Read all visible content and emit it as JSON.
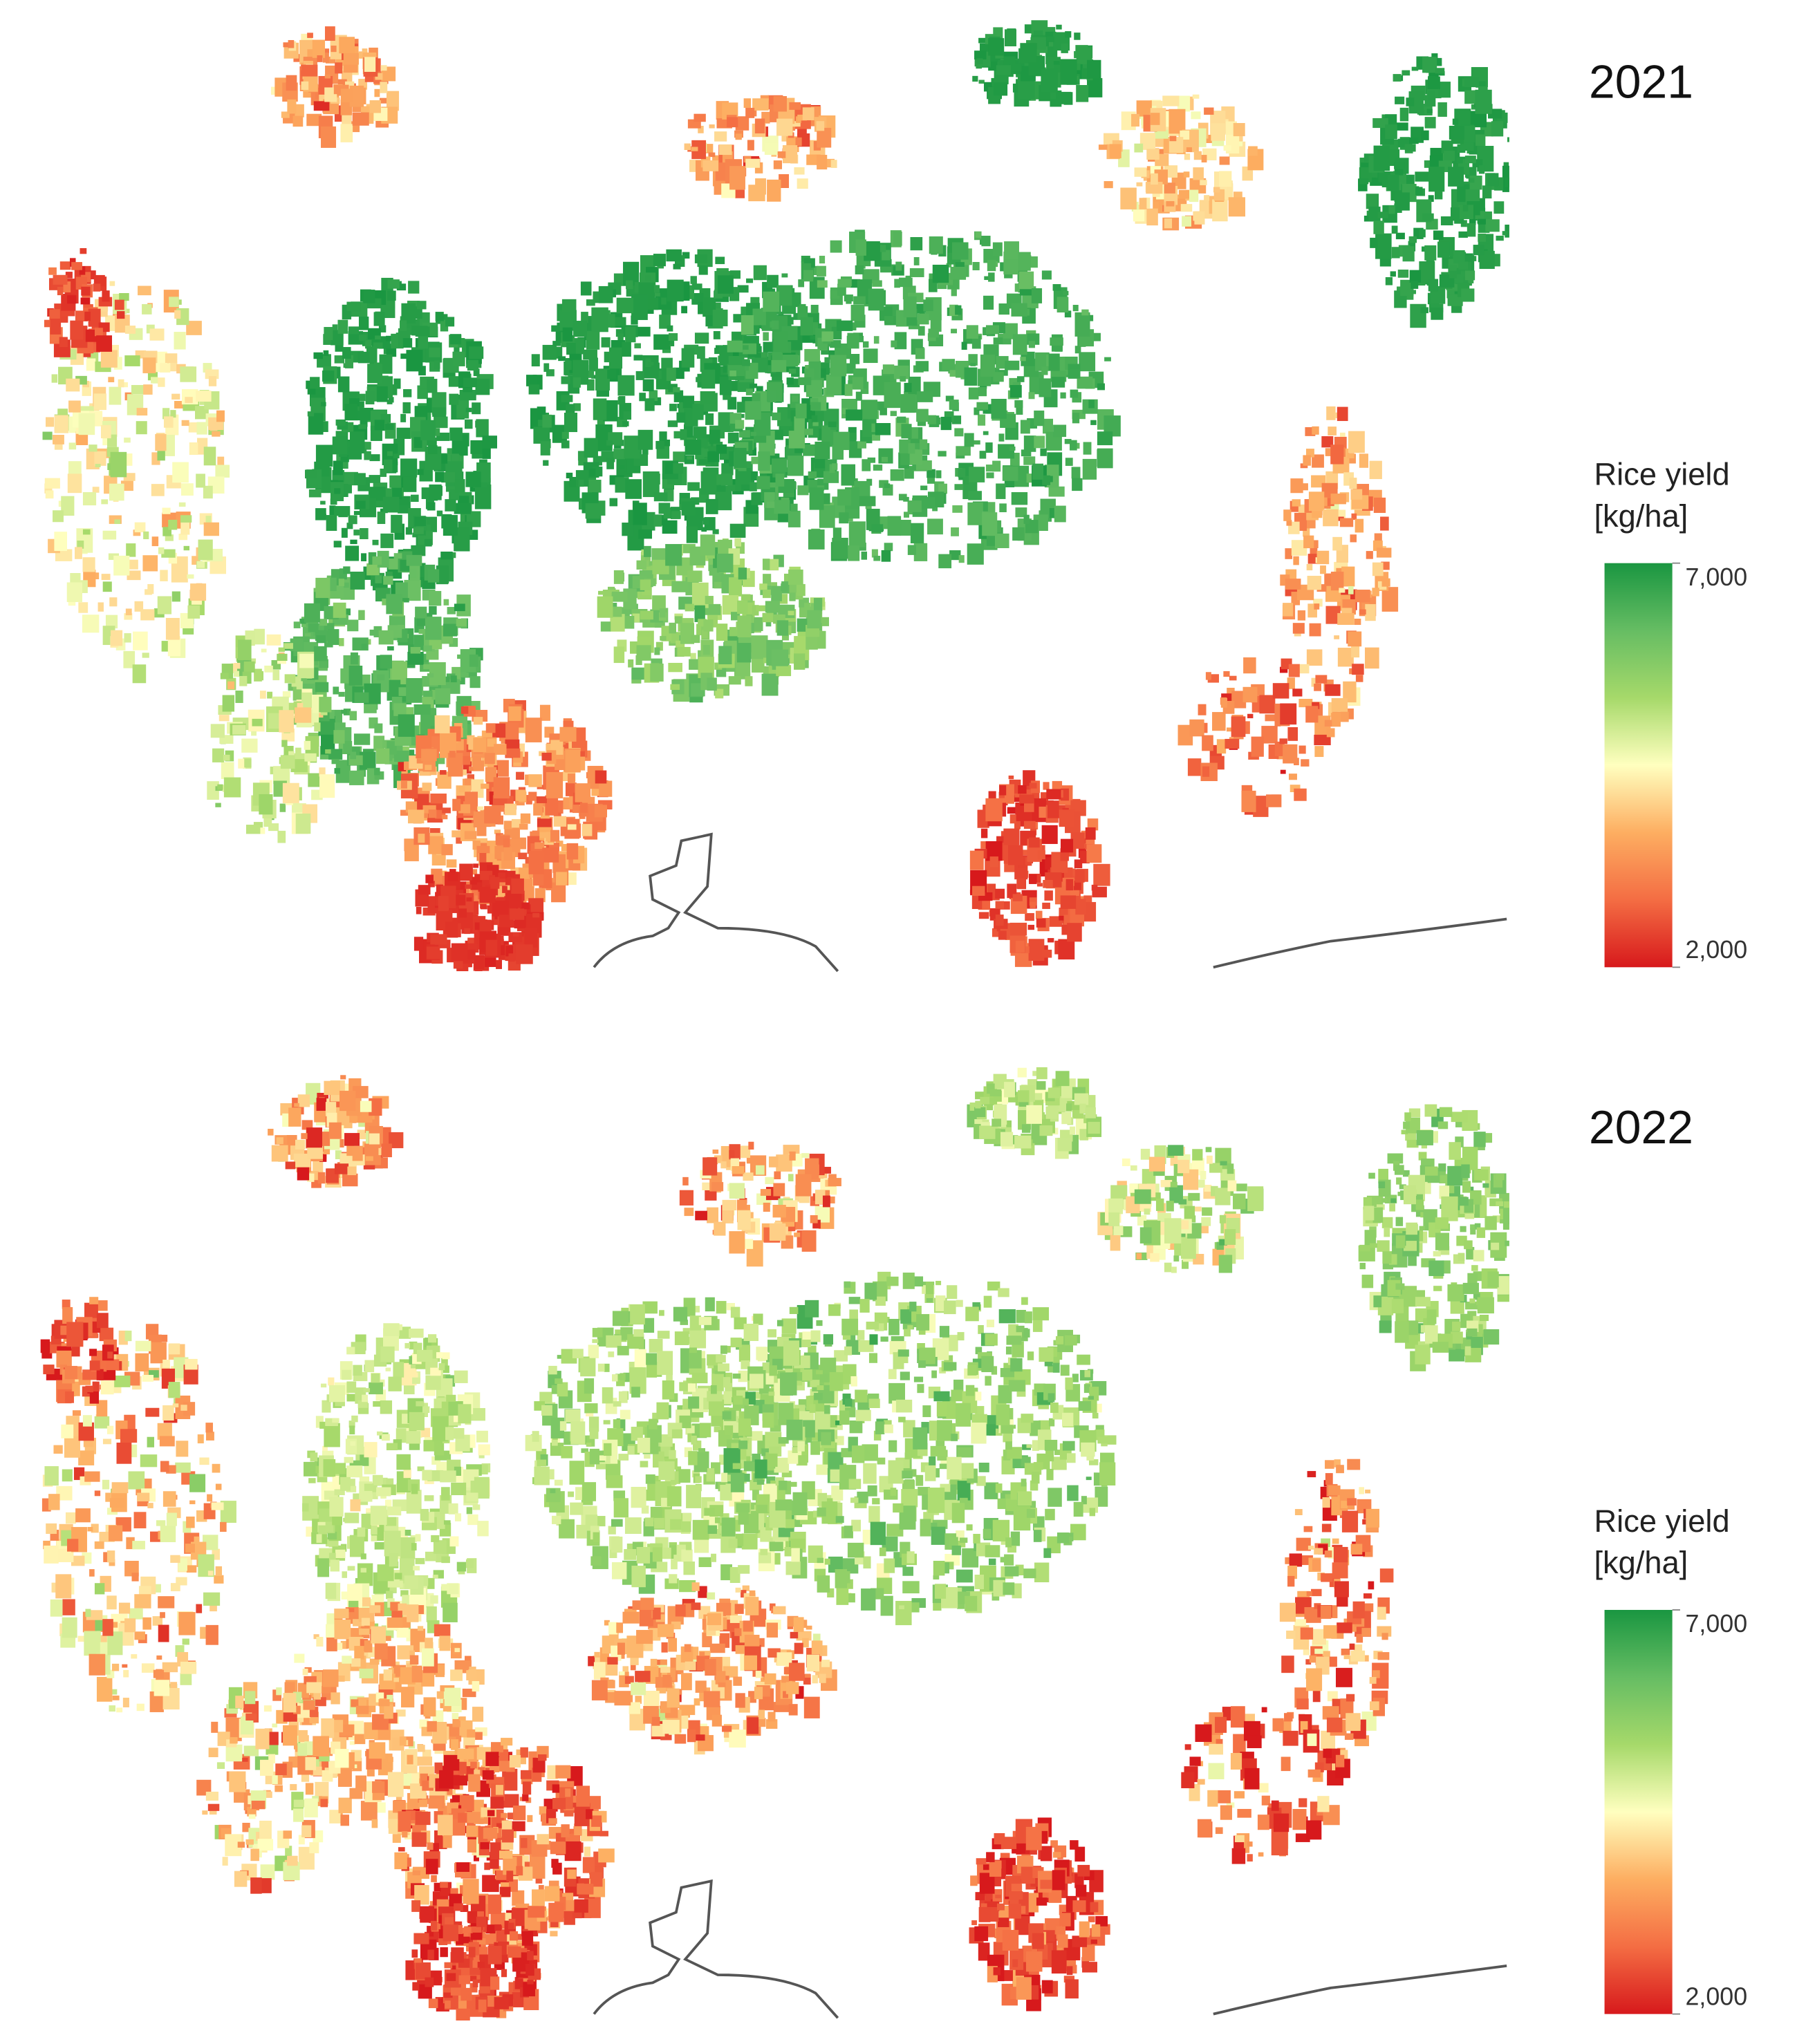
{
  "panels": [
    {
      "year": "2021"
    },
    {
      "year": "2022"
    }
  ],
  "legend": {
    "title": [
      "Rice yield",
      "[kg/ha]"
    ],
    "ticks": [
      {
        "value": 7000,
        "label": "7,000"
      },
      {
        "value": 2000,
        "label": "2,000"
      }
    ],
    "colors": [
      "#d7191c",
      "#f46d43",
      "#fdae61",
      "#ffffbf",
      "#a6d96a",
      "#66bd63",
      "#1a9641"
    ]
  }
}
